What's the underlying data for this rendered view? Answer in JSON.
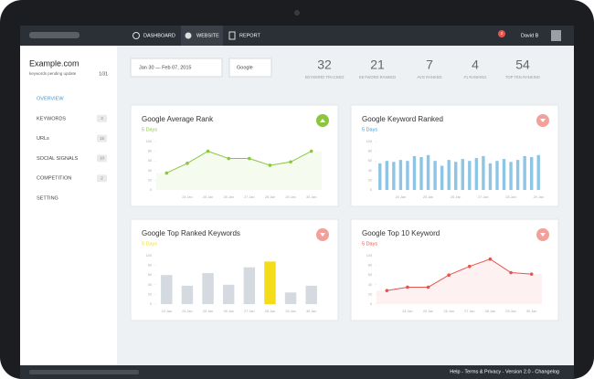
{
  "nav": {
    "items": [
      "DASHBOARD",
      "WEBSITE",
      "REPORT"
    ],
    "notifications": "2",
    "user": "David B"
  },
  "sidebar": {
    "site": "Example.com",
    "pending": "keywords pending update",
    "count": "1/31",
    "menu": [
      {
        "label": "OVERVIEW"
      },
      {
        "label": "KEYWORDS",
        "badge": 3
      },
      {
        "label": "URLs",
        "badge": 15
      },
      {
        "label": "SOCIAL SIGNALS",
        "badge": 10
      },
      {
        "label": "COMPETITION",
        "badge": 2
      },
      {
        "label": "SETTING"
      }
    ]
  },
  "filters": {
    "date": "Jan 30 — Feb 07, 2015",
    "engine": "Google"
  },
  "stats": [
    {
      "value": 32,
      "label": "KEYWORD TRACKED"
    },
    {
      "value": 21,
      "label": "KEYWORD RANKED"
    },
    {
      "value": 7,
      "label": "AVG RANKED"
    },
    {
      "value": 4,
      "label": "#1 RANKING"
    },
    {
      "value": 54,
      "label": "TOP TEN RANKING"
    }
  ],
  "chart_data": [
    {
      "type": "line",
      "title": "Google Average Rank",
      "subtitle": "5 Days",
      "subtitle_color": "#8cc63f",
      "trend": "up",
      "trend_color": "#8cc63f",
      "categories": [
        null,
        "24 Jan",
        "25 Jan",
        "26 Jan",
        "27 Jan",
        "28 Jan",
        "29 Jan",
        "30 Jan"
      ],
      "values": [
        35,
        55,
        80,
        65,
        65,
        51,
        58,
        80
      ],
      "color": "#8cc63f",
      "ylim": [
        0,
        100
      ],
      "yticks": [
        0,
        20,
        40,
        60,
        80,
        100
      ]
    },
    {
      "type": "bar",
      "title": "Google Keyword Ranked",
      "subtitle": "5 Days",
      "subtitle_color": "#3a9ad9",
      "trend": "down",
      "trend_color": "#f4a09a",
      "categories": [
        null,
        null,
        null,
        "24 Jan",
        null,
        null,
        null,
        "25 Jan",
        null,
        null,
        null,
        "26 Jan",
        null,
        null,
        null,
        "27 Jan",
        null,
        null,
        null,
        "28 Jan",
        null,
        null,
        null,
        "29 Jan"
      ],
      "values": [
        55,
        60,
        58,
        62,
        60,
        70,
        68,
        72,
        60,
        50,
        62,
        58,
        64,
        60,
        66,
        70,
        55,
        60,
        64,
        58,
        62,
        70,
        68,
        72
      ],
      "color": "#8ec5e6",
      "ylim": [
        0,
        100
      ],
      "yticks": [
        0,
        20,
        40,
        60,
        80,
        100
      ]
    },
    {
      "type": "bar",
      "title": "Google Top Ranked Keywords",
      "subtitle": "5 Days",
      "subtitle_color": "#f5dc1a",
      "trend": "down",
      "trend_color": "#f4a09a",
      "categories": [
        "23 Jan",
        "24 Jan",
        "25 Jan",
        "26 Jan",
        "27 Jan",
        "28 Jan",
        "29 Jan",
        "30 Jan"
      ],
      "values": [
        60,
        38,
        64,
        40,
        76,
        88,
        24,
        38
      ],
      "colors": [
        "#d5dae0",
        "#d5dae0",
        "#d5dae0",
        "#d5dae0",
        "#d5dae0",
        "#f5dc1a",
        "#d5dae0",
        "#d5dae0"
      ],
      "ylim": [
        0,
        100
      ],
      "yticks": [
        0,
        20,
        40,
        60,
        80,
        100
      ]
    },
    {
      "type": "line",
      "title": "Google Top 10 Keyword",
      "subtitle": "5 Days",
      "subtitle_color": "#e5554f",
      "trend": "down",
      "trend_color": "#f4a09a",
      "categories": [
        null,
        "24 Jan",
        "25 Jan",
        "26 Jan",
        "27 Jan",
        "28 Jan",
        "29 Jan",
        "30 Jan"
      ],
      "values": [
        28,
        35,
        35,
        60,
        78,
        93,
        65,
        62
      ],
      "color": "#e5554f",
      "ylim": [
        0,
        100
      ],
      "yticks": [
        0,
        20,
        40,
        60,
        80,
        100
      ]
    }
  ],
  "footer": "Help - Terms & Privacy - Version 2.0 - Changelog"
}
